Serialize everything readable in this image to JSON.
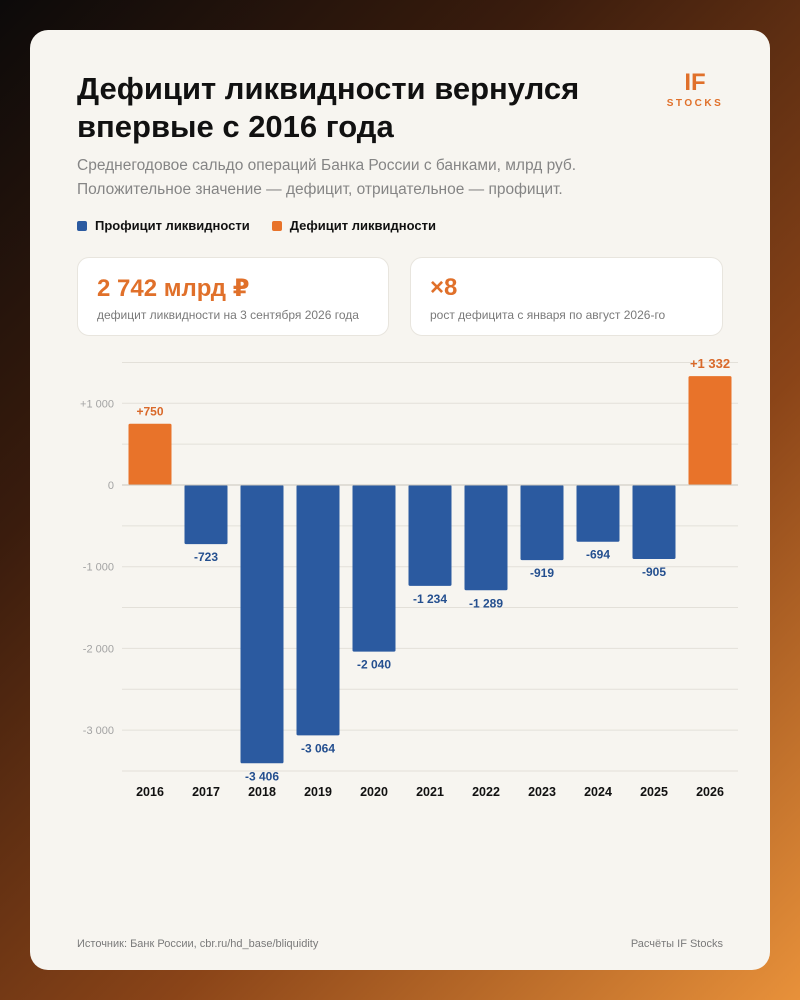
{
  "header": {
    "title_line1": "Дефицит ликвидности вернулся",
    "title_line2": "впервые с 2016 года",
    "subtitle_line1": "Среднегодовое сальдо операций Банка России с банками, млрд руб.",
    "subtitle_line2": "Положительное значение — дефицит, отрицательное — профицит."
  },
  "brand": {
    "main": "IF",
    "sub": "STOCKS"
  },
  "legend": [
    {
      "label": "Профицит ликвидности",
      "color": "#2b5aa0"
    },
    {
      "label": "Дефицит ликвидности",
      "color": "#e8732a"
    }
  ],
  "stats": [
    {
      "value": "2 742 млрд ₽",
      "label": "дефицит ликвидности на 3 сентября 2026 года"
    },
    {
      "value": "×8",
      "label": "рост дефицита с января по август 2026-го"
    }
  ],
  "colors": {
    "surplus": "#2b5aa0",
    "deficit": "#e8732a",
    "surplus_label": "#244f8f",
    "deficit_label": "#d9692a"
  },
  "chart_data": {
    "type": "bar",
    "title": "Дефицит ликвидности вернулся впервые с 2016 года",
    "ylabel": "",
    "xlabel": "",
    "ylim": [
      -3500,
      1500
    ],
    "yticks": [
      1000,
      0,
      -1000,
      -2000,
      -3000
    ],
    "ytick_labels": [
      "+1 000",
      "0",
      "-1 000",
      "-2 000",
      "-3 000"
    ],
    "grid": true,
    "legend_position": "top-left",
    "categories": [
      "2016",
      "2017",
      "2018",
      "2019",
      "2020",
      "2021",
      "2022",
      "2023",
      "2024",
      "2025",
      "2026"
    ],
    "values": [
      750,
      -723,
      -3406,
      -3064,
      -2040,
      -1234,
      -1289,
      -919,
      -694,
      -905,
      1332
    ],
    "value_labels": [
      "+750",
      "-723",
      "-3 406",
      "-3 064",
      "-2 040",
      "-1 234",
      "-1 289",
      "-919",
      "-694",
      "-905",
      "+1 332"
    ]
  },
  "footer": {
    "source": "Источник: Банк России, cbr.ru/hd_base/bliquidity",
    "credit": "Расчёты IF Stocks"
  }
}
